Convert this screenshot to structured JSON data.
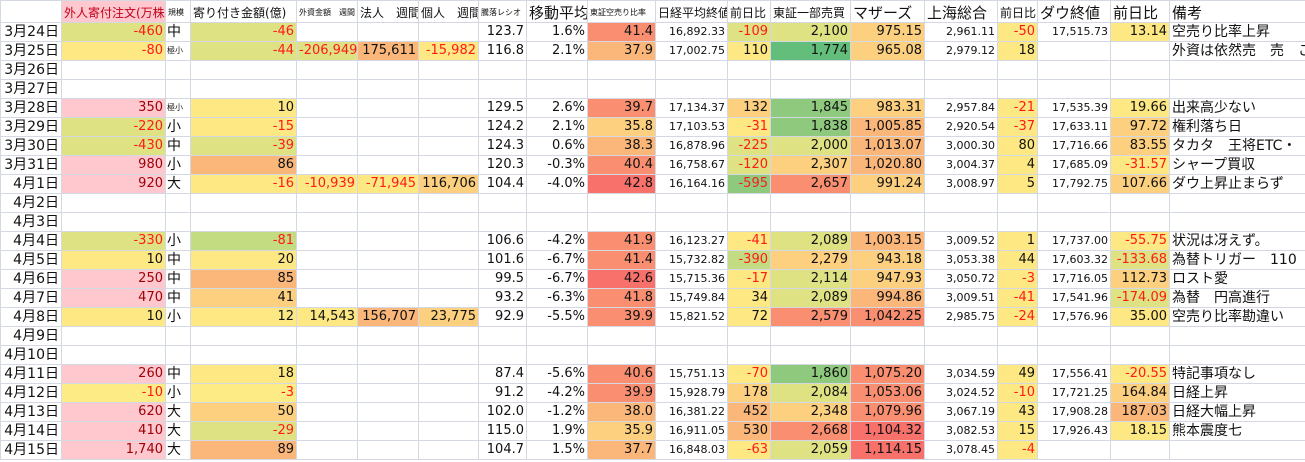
{
  "palette": {
    "P": "#ffc7ce",
    "y": "#fee883",
    "yl": "#fdec86",
    "yg": "#dfe283",
    "g": "#c4dc81",
    "gg": "#8ec97d",
    "G": "#63be7b",
    "o": "#fdd07f",
    "O": "#fbb77a",
    "r": "#f98f70",
    "R": "#f8716b",
    "pk": "#ffc7ce"
  },
  "headers": [
    "",
    "外人寄付注文(万株)",
    "規模",
    "寄り付き金額(億)",
    "外資金額　週間",
    "法人　週間",
    "個人　週間",
    "騰落レシオ",
    "移動平均",
    "東証空売り比率",
    "日経平均終値",
    "前日比",
    "東証一部売買",
    "マザーズ",
    "上海総合",
    "前日比",
    "ダウ終値",
    "前日比",
    "備考"
  ],
  "rows": [
    {
      "c": [
        "3月24日",
        "-460",
        "中",
        "-46",
        "",
        "",
        "",
        "123.7",
        "1.6%",
        "41.4",
        "16,892.33",
        "-109",
        "2,100",
        "975.15",
        "2,961.11",
        "-50",
        "17,515.73",
        "13.14",
        "空売り比率上昇"
      ],
      "bg": [
        "",
        "yg",
        "",
        "yg",
        "",
        "",
        "",
        "",
        "",
        "r",
        "",
        "yg",
        "yg",
        "o",
        "",
        "y",
        "",
        "y",
        ""
      ]
    },
    {
      "c": [
        "3月25日",
        "-80",
        "極小",
        "-44",
        "-206,949",
        "175,611",
        "-15,982",
        "116.8",
        "2.1%",
        "37.9",
        "17,002.75",
        "110",
        "1,774",
        "965.08",
        "2,979.12",
        "18",
        "",
        "",
        "外資は依然売　売　これ大丈"
      ],
      "bg": [
        "",
        "y",
        "",
        "yg",
        "yg",
        "O",
        "y",
        "",
        "",
        "O",
        "",
        "y",
        "G",
        "o",
        "",
        "y",
        "",
        "",
        ""
      ]
    },
    {
      "c": [
        "3月26日",
        "",
        "",
        "",
        "",
        "",
        "",
        "",
        "",
        "",
        "",
        "",
        "",
        "",
        "",
        "",
        "",
        "",
        ""
      ],
      "bg": []
    },
    {
      "c": [
        "3月27日",
        "",
        "",
        "",
        "",
        "",
        "",
        "",
        "",
        "",
        "",
        "",
        "",
        "",
        "",
        "",
        "",
        "",
        ""
      ],
      "bg": []
    },
    {
      "c": [
        "3月28日",
        "350",
        "極小",
        "10",
        "",
        "",
        "",
        "129.5",
        "2.6%",
        "39.7",
        "17,134.37",
        "132",
        "1,845",
        "983.31",
        "2,957.84",
        "-21",
        "17,535.39",
        "19.66",
        "出来高少ない"
      ],
      "bg": [
        "",
        "P",
        "",
        "y",
        "",
        "",
        "",
        "",
        "",
        "r",
        "",
        "o",
        "gg",
        "o",
        "",
        "y",
        "",
        "y",
        ""
      ]
    },
    {
      "c": [
        "3月29日",
        "-220",
        "小",
        "-15",
        "",
        "",
        "",
        "124.2",
        "2.1%",
        "35.8",
        "17,103.53",
        "-31",
        "1,838",
        "1,005.85",
        "2,920.54",
        "-37",
        "17,633.11",
        "97.72",
        "権利落ち日"
      ],
      "bg": [
        "",
        "yg",
        "",
        "y",
        "",
        "",
        "",
        "",
        "",
        "o",
        "",
        "y",
        "gg",
        "O",
        "",
        "y",
        "",
        "o",
        ""
      ]
    },
    {
      "c": [
        "3月30日",
        "-430",
        "中",
        "-39",
        "",
        "",
        "",
        "124.3",
        "0.6%",
        "38.3",
        "16,878.96",
        "-225",
        "2,000",
        "1,013.07",
        "3,000.30",
        "80",
        "17,716.66",
        "83.55",
        "タカタ　王将ETC・"
      ],
      "bg": [
        "",
        "yg",
        "",
        "yg",
        "",
        "",
        "",
        "",
        "",
        "O",
        "",
        "yg",
        "yg",
        "O",
        "",
        "y",
        "",
        "o",
        ""
      ]
    },
    {
      "c": [
        "3月31日",
        "980",
        "小",
        "86",
        "",
        "",
        "",
        "120.3",
        "-0.3%",
        "40.4",
        "16,758.67",
        "-120",
        "2,307",
        "1,020.80",
        "3,004.37",
        "4",
        "17,685.09",
        "-31.57",
        "シャープ買収"
      ],
      "bg": [
        "",
        "P",
        "",
        "O",
        "",
        "",
        "",
        "",
        "",
        "r",
        "",
        "yg",
        "o",
        "O",
        "",
        "y",
        "",
        "y",
        ""
      ]
    },
    {
      "c": [
        "4月1日",
        "920",
        "大",
        "-16",
        "-10,939",
        "-71,945",
        "116,706",
        "104.4",
        "-4.0%",
        "42.8",
        "16,164.16",
        "-595",
        "2,657",
        "991.24",
        "3,008.97",
        "5",
        "17,792.75",
        "107.66",
        "ダウ上昇止まらず"
      ],
      "bg": [
        "",
        "P",
        "",
        "y",
        "y",
        "y",
        "o",
        "",
        "",
        "R",
        "",
        "gg",
        "r",
        "o",
        "",
        "y",
        "",
        "o",
        ""
      ]
    },
    {
      "c": [
        "4月2日",
        "",
        "",
        "",
        "",
        "",
        "",
        "",
        "",
        "",
        "",
        "",
        "",
        "",
        "",
        "",
        "",
        "",
        ""
      ],
      "bg": []
    },
    {
      "c": [
        "4月3日",
        "",
        "",
        "",
        "",
        "",
        "",
        "",
        "",
        "",
        "",
        "",
        "",
        "",
        "",
        "",
        "",
        "",
        ""
      ],
      "bg": []
    },
    {
      "c": [
        "4月4日",
        "-330",
        "小",
        "-81",
        "",
        "",
        "",
        "106.6",
        "-4.2%",
        "41.9",
        "16,123.27",
        "-41",
        "2,089",
        "1,003.15",
        "3,009.52",
        "1",
        "17,737.00",
        "-55.75",
        "状況は冴えず。"
      ],
      "bg": [
        "",
        "yg",
        "",
        "g",
        "",
        "",
        "",
        "",
        "",
        "r",
        "",
        "y",
        "yg",
        "O",
        "",
        "y",
        "",
        "y",
        ""
      ]
    },
    {
      "c": [
        "4月5日",
        "10",
        "中",
        "20",
        "",
        "",
        "",
        "101.6",
        "-6.7%",
        "41.4",
        "15,732.82",
        "-390",
        "2,279",
        "943.18",
        "3,053.38",
        "44",
        "17,603.32",
        "-133.68",
        "為替トリガー　110"
      ],
      "bg": [
        "",
        "y",
        "",
        "y",
        "",
        "",
        "",
        "",
        "",
        "r",
        "",
        "g",
        "o",
        "o",
        "",
        "y",
        "",
        "yg",
        ""
      ]
    },
    {
      "c": [
        "4月6日",
        "250",
        "中",
        "85",
        "",
        "",
        "",
        "99.5",
        "-6.7%",
        "42.6",
        "15,715.36",
        "-17",
        "2,114",
        "947.93",
        "3,050.72",
        "-3",
        "17,716.05",
        "112.73",
        "ロスト愛"
      ],
      "bg": [
        "",
        "P",
        "",
        "O",
        "",
        "",
        "",
        "",
        "",
        "R",
        "",
        "y",
        "yg",
        "o",
        "",
        "y",
        "",
        "o",
        ""
      ]
    },
    {
      "c": [
        "4月7日",
        "470",
        "中",
        "41",
        "",
        "",
        "",
        "93.2",
        "-6.3%",
        "41.8",
        "15,749.84",
        "34",
        "2,089",
        "994.86",
        "3,009.51",
        "-41",
        "17,541.96",
        "-174.09",
        "為替　円高進行"
      ],
      "bg": [
        "",
        "P",
        "",
        "o",
        "",
        "",
        "",
        "",
        "",
        "r",
        "",
        "y",
        "yg",
        "O",
        "",
        "y",
        "",
        "yg",
        ""
      ]
    },
    {
      "c": [
        "4月8日",
        "10",
        "小",
        "12",
        "14,543",
        "156,707",
        "23,775",
        "92.9",
        "-5.5%",
        "39.9",
        "15,821.52",
        "72",
        "2,579",
        "1,042.25",
        "2,985.75",
        "-24",
        "17,576.96",
        "35.00",
        "空売り比率勘違い"
      ],
      "bg": [
        "",
        "y",
        "",
        "y",
        "y",
        "O",
        "o",
        "",
        "",
        "r",
        "",
        "y",
        "r",
        "r",
        "",
        "y",
        "",
        "y",
        ""
      ]
    },
    {
      "c": [
        "4月9日",
        "",
        "",
        "",
        "",
        "",
        "",
        "",
        "",
        "",
        "",
        "",
        "",
        "",
        "",
        "",
        "",
        "",
        ""
      ],
      "bg": []
    },
    {
      "c": [
        "4月10日",
        "",
        "",
        "",
        "",
        "",
        "",
        "",
        "",
        "",
        "",
        "",
        "",
        "",
        "",
        "",
        "",
        "",
        ""
      ],
      "bg": []
    },
    {
      "c": [
        "4月11日",
        "260",
        "中",
        "18",
        "",
        "",
        "",
        "87.4",
        "-5.6%",
        "40.6",
        "15,751.13",
        "-70",
        "1,860",
        "1,075.20",
        "3,034.59",
        "49",
        "17,556.41",
        "-20.55",
        "特記事項なし"
      ],
      "bg": [
        "",
        "P",
        "",
        "y",
        "",
        "",
        "",
        "",
        "",
        "r",
        "",
        "y",
        "gg",
        "r",
        "",
        "y",
        "",
        "y",
        ""
      ]
    },
    {
      "c": [
        "4月12日",
        "-10",
        "小",
        "-3",
        "",
        "",
        "",
        "91.2",
        "-4.2%",
        "39.9",
        "15,928.79",
        "178",
        "2,084",
        "1,053.06",
        "3,024.52",
        "-10",
        "17,721.25",
        "164.84",
        "日経上昇"
      ],
      "bg": [
        "",
        "yl",
        "",
        "yl",
        "",
        "",
        "",
        "",
        "",
        "r",
        "",
        "o",
        "yg",
        "r",
        "",
        "y",
        "",
        "o",
        ""
      ]
    },
    {
      "c": [
        "4月13日",
        "620",
        "大",
        "50",
        "",
        "",
        "",
        "102.0",
        "-1.2%",
        "38.0",
        "16,381.22",
        "452",
        "2,348",
        "1,079.96",
        "3,067.19",
        "43",
        "17,908.28",
        "187.03",
        "日経大幅上昇"
      ],
      "bg": [
        "",
        "P",
        "",
        "o",
        "",
        "",
        "",
        "",
        "",
        "O",
        "",
        "O",
        "o",
        "r",
        "",
        "y",
        "",
        "O",
        ""
      ]
    },
    {
      "c": [
        "4月14日",
        "410",
        "大",
        "-29",
        "",
        "",
        "",
        "115.0",
        "1.9%",
        "35.9",
        "16,911.05",
        "530",
        "2,668",
        "1,104.32",
        "3,082.53",
        "15",
        "17,926.43",
        "18.15",
        "熊本震度七"
      ],
      "bg": [
        "",
        "P",
        "",
        "yg",
        "",
        "",
        "",
        "",
        "",
        "o",
        "",
        "O",
        "r",
        "R",
        "",
        "y",
        "",
        "y",
        ""
      ]
    },
    {
      "c": [
        "4月15日",
        "1,740",
        "大",
        "89",
        "",
        "",
        "",
        "104.7",
        "1.5%",
        "37.7",
        "16,848.03",
        "-63",
        "2,059",
        "1,114.15",
        "3,078.45",
        "-4",
        "",
        "",
        ""
      ],
      "bg": [
        "",
        "P",
        "",
        "O",
        "",
        "",
        "",
        "",
        "",
        "O",
        "",
        "y",
        "yg",
        "R",
        "",
        "y",
        "",
        "",
        ""
      ]
    }
  ]
}
